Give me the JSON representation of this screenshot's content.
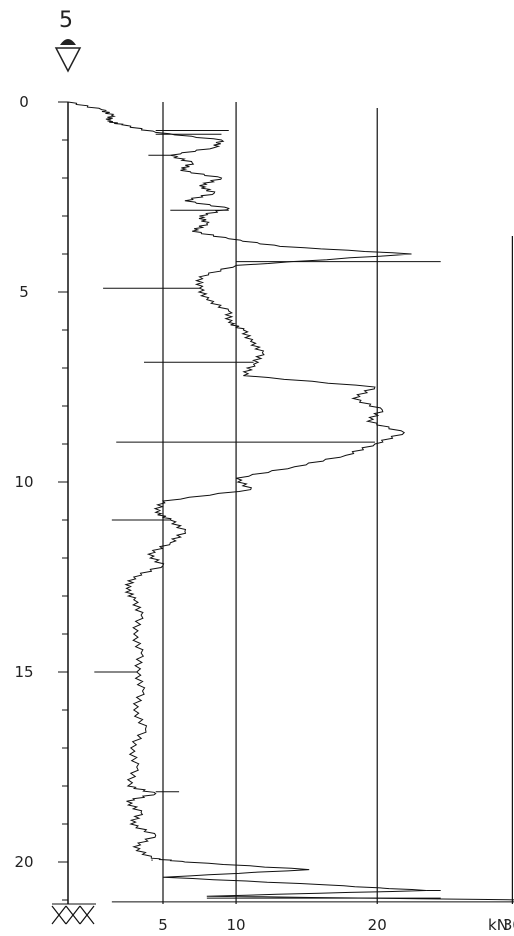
{
  "chart_data": {
    "type": "line",
    "title": "5",
    "xlabel": "kN",
    "ylabel": "",
    "xlim": [
      -2,
      30
    ],
    "ylim": [
      0,
      21
    ],
    "x_ticks": [
      5,
      10,
      20,
      30
    ],
    "y_ticks": [
      0,
      5,
      10,
      15,
      20
    ],
    "series": [
      {
        "orientation": "vertical-profile",
        "depth": [
          0.0,
          0.2,
          0.35,
          0.5,
          0.6,
          0.8,
          1.0,
          1.2,
          1.4,
          1.6,
          1.8,
          2.0,
          2.2,
          2.4,
          2.6,
          2.8,
          3.0,
          3.2,
          3.4,
          3.6,
          3.8,
          4.0,
          4.3,
          4.6,
          4.9,
          5.2,
          5.5,
          5.8,
          6.0,
          6.3,
          6.6,
          6.9,
          7.2,
          7.5,
          7.8,
          8.1,
          8.4,
          8.7,
          9.0,
          9.3,
          9.6,
          9.9,
          10.2,
          10.5,
          10.8,
          11.0,
          11.3,
          11.6,
          11.9,
          12.2,
          12.5,
          12.8,
          13.1,
          13.5,
          14.0,
          14.5,
          15.0,
          15.5,
          16.0,
          16.5,
          17.0,
          17.5,
          18.0,
          18.2,
          18.4,
          18.7,
          19.0,
          19.3,
          19.6,
          19.9,
          20.0,
          20.2,
          20.4,
          20.6,
          20.75,
          20.9,
          21.0
        ],
        "force_kN": [
          -1.5,
          0.8,
          1.5,
          1.2,
          2.2,
          4.5,
          9.0,
          8.5,
          5.5,
          7.0,
          6.2,
          9.0,
          7.5,
          8.5,
          6.5,
          9.5,
          7.5,
          8.0,
          7.0,
          9.5,
          13.0,
          22.0,
          10.0,
          7.5,
          7.5,
          8.0,
          9.5,
          9.5,
          10.5,
          11.0,
          11.8,
          11.2,
          10.5,
          19.5,
          18.0,
          20.0,
          19.0,
          21.5,
          19.5,
          17.5,
          14.0,
          10.0,
          11.0,
          5.0,
          4.5,
          5.5,
          6.5,
          5.5,
          4.0,
          5.0,
          3.0,
          2.5,
          3.0,
          3.5,
          3.0,
          3.5,
          3.2,
          3.6,
          3.0,
          3.8,
          2.8,
          3.2,
          2.6,
          4.5,
          2.5,
          3.5,
          2.8,
          4.5,
          3.0,
          4.2,
          6.5,
          15.0,
          5.0,
          16.0,
          23.0,
          8.0,
          30.0
        ],
        "spikes": [
          {
            "depth": 0.75,
            "force_kN": 9.5
          },
          {
            "depth": 0.85,
            "force_kN": 9.0
          },
          {
            "depth": 1.4,
            "force_kN": 4.0
          },
          {
            "depth": 2.85,
            "force_kN": 5.5
          },
          {
            "depth": 4.2,
            "force_kN": 24.0
          },
          {
            "depth": 4.9,
            "force_kN": 0.9
          },
          {
            "depth": 6.85,
            "force_kN": 3.7
          },
          {
            "depth": 8.95,
            "force_kN": 1.8
          },
          {
            "depth": 11.0,
            "force_kN": 1.5
          },
          {
            "depth": 15.0,
            "force_kN": 0.3
          },
          {
            "depth": 18.15,
            "force_kN": 6.1
          },
          {
            "depth": 19.95,
            "force_kN": 4.3
          },
          {
            "depth": 20.75,
            "force_kN": 24.0
          },
          {
            "depth": 20.95,
            "force_kN": 24.0
          },
          {
            "depth": 21.05,
            "force_kN": 1.5
          }
        ]
      }
    ]
  }
}
